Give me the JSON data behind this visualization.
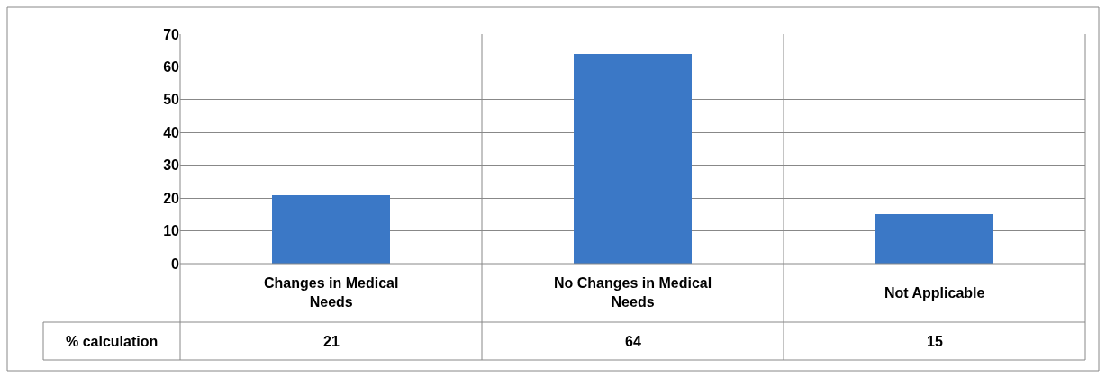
{
  "chart_data": {
    "type": "bar",
    "categories": [
      "Changes in Medical Needs",
      "No Changes in Medical Needs",
      "Not Applicable"
    ],
    "series": [
      {
        "name": "% calculation",
        "color": "#3b78c6",
        "values": [
          21,
          64,
          15
        ]
      }
    ],
    "ylim": [
      0,
      70
    ],
    "yticks": [
      0,
      10,
      20,
      30,
      40,
      50,
      60,
      70
    ],
    "grid": true,
    "data_labels": true
  }
}
